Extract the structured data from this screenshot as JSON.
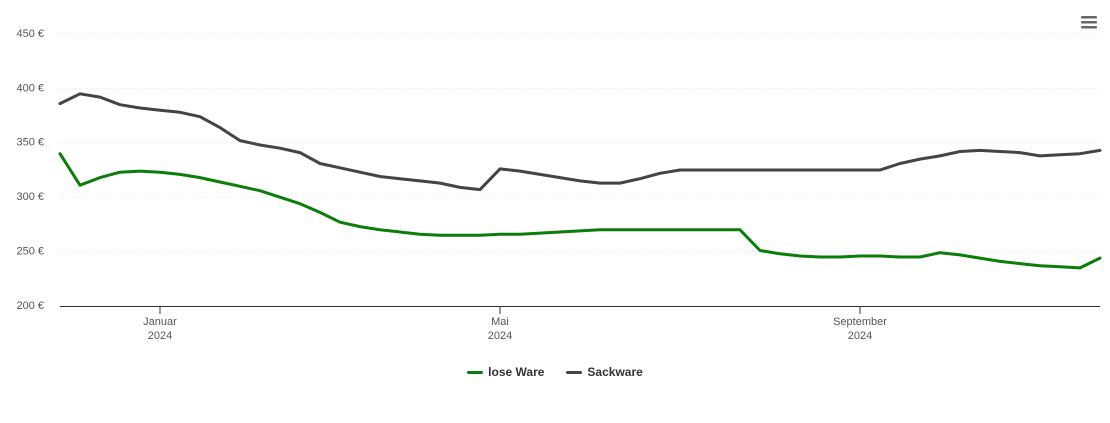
{
  "chart_data": {
    "type": "line",
    "x": [
      null,
      null,
      null,
      null,
      null,
      "Januar\n2024",
      null,
      null,
      null,
      null,
      null,
      null,
      null,
      null,
      null,
      null,
      null,
      null,
      null,
      null,
      null,
      null,
      "Mai\n2024",
      null,
      null,
      null,
      null,
      null,
      null,
      null,
      null,
      null,
      null,
      null,
      null,
      null,
      null,
      null,
      null,
      null,
      "September\n2024",
      null,
      null,
      null,
      null,
      null,
      null,
      null,
      null,
      null,
      null,
      null,
      null
    ],
    "series": [
      {
        "name": "lose Ware",
        "color": "#0a7d0a",
        "values": [
          340,
          311,
          318,
          323,
          324,
          323,
          321,
          318,
          314,
          310,
          306,
          300,
          294,
          286,
          277,
          273,
          270,
          268,
          266,
          265,
          265,
          265,
          266,
          266,
          267,
          268,
          269,
          270,
          270,
          270,
          270,
          270,
          270,
          270,
          270,
          251,
          248,
          246,
          245,
          245,
          246,
          246,
          245,
          245,
          249,
          247,
          244,
          241,
          239,
          237,
          236,
          235,
          244
        ]
      },
      {
        "name": "Sackware",
        "color": "#434348",
        "values": [
          386,
          395,
          392,
          385,
          382,
          380,
          378,
          374,
          364,
          352,
          348,
          345,
          341,
          331,
          327,
          323,
          319,
          317,
          315,
          313,
          309,
          307,
          326,
          324,
          321,
          318,
          315,
          313,
          313,
          317,
          322,
          325,
          325,
          325,
          325,
          325,
          325,
          325,
          325,
          325,
          325,
          325,
          331,
          335,
          338,
          342,
          343,
          342,
          341,
          338,
          339,
          340,
          343
        ]
      }
    ],
    "ylim": [
      200,
      450
    ],
    "yticks": [
      {
        "value": 200,
        "label": "200 €"
      },
      {
        "value": 250,
        "label": "250 €"
      },
      {
        "value": 300,
        "label": "300 €"
      },
      {
        "value": 350,
        "label": "350 €"
      },
      {
        "value": 400,
        "label": "400 €"
      },
      {
        "value": 450,
        "label": "450 €"
      }
    ],
    "grid": true,
    "legend": "bottom"
  }
}
